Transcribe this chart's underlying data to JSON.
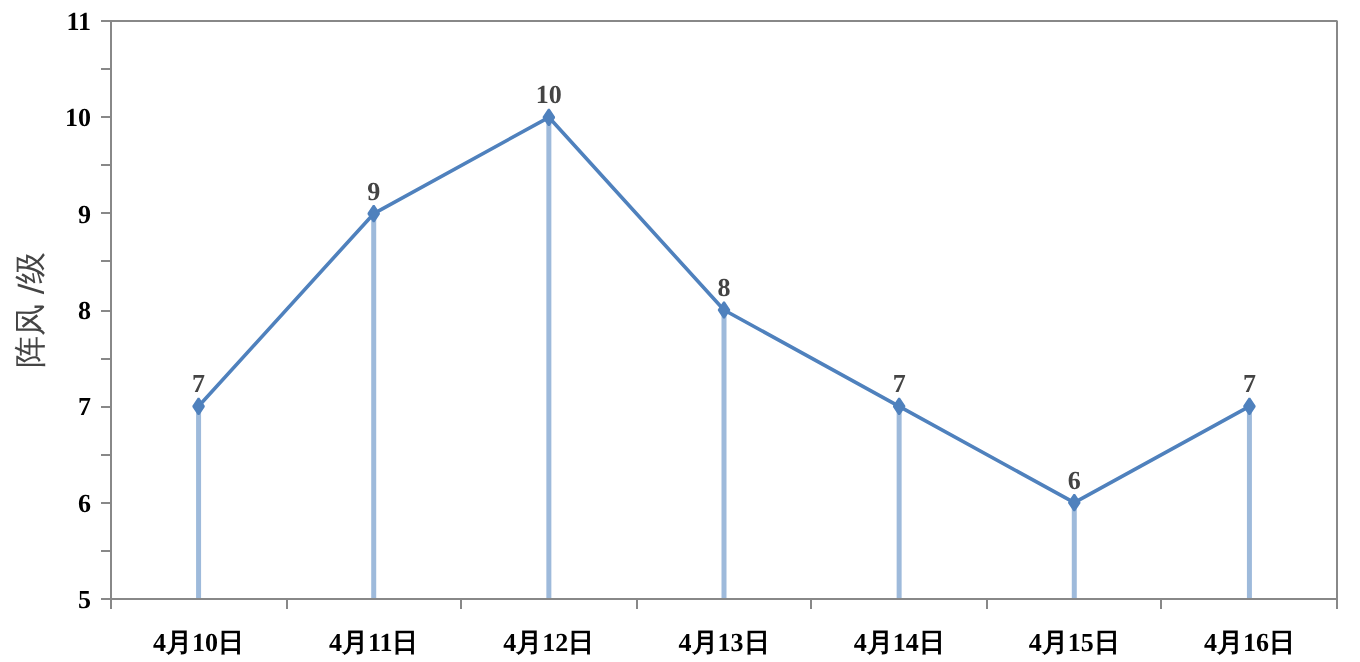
{
  "chart_data": {
    "type": "line",
    "ylabel": "阵风 /级",
    "categories": [
      "4月10日",
      "4月11日",
      "4月12日",
      "4月13日",
      "4月14日",
      "4月15日",
      "4月16日"
    ],
    "series": [
      {
        "color": "#4f81bd",
        "values": [
          7,
          9,
          10,
          8,
          7,
          6,
          7
        ]
      },
      {
        "type": "lollipop",
        "color": "#4f81bd",
        "values": [
          7,
          9,
          10,
          8,
          7,
          6,
          7
        ],
        "value_labels": [
          "7",
          "9",
          "10",
          "8",
          "7",
          "6",
          "7"
        ]
      }
    ],
    "ylim": [
      5,
      11
    ],
    "yticks": [
      5,
      6,
      7,
      8,
      9,
      10,
      11
    ],
    "line_style": "solid"
  }
}
